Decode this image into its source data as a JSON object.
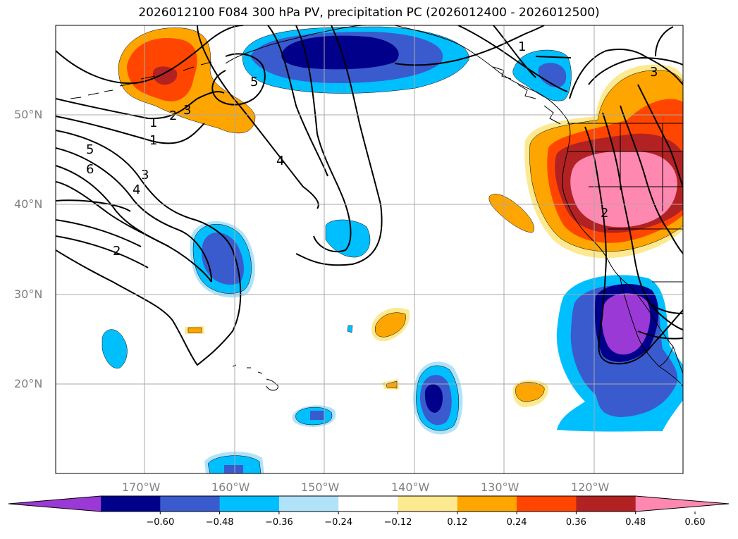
{
  "title": "2026012100 F084 300 hPa PV, precipitation PC (2026012400 - 2026012500)",
  "y_ticks": [
    "50°N",
    "40°N",
    "30°N",
    "20°N"
  ],
  "x_ticks": [
    "170°W",
    "160°W",
    "150°W",
    "140°W",
    "130°W",
    "120°W"
  ],
  "colorbar": {
    "labels": [
      "−0.60",
      "−0.48",
      "−0.36",
      "−0.24",
      "−0.12",
      "0.12",
      "0.24",
      "0.36",
      "0.48",
      "0.60"
    ],
    "colors": [
      "#9b39d6",
      "#00008b",
      "#3a5bcd",
      "#00bfff",
      "#b0e2fa",
      "#ffffff",
      "#fde990",
      "#ffa500",
      "#ff4500",
      "#b22222",
      "#ff88b0"
    ]
  },
  "contour_labels": [
    "1",
    "1",
    "2",
    "2",
    "3",
    "3",
    "4",
    "4",
    "5",
    "6",
    "1",
    "3",
    "2",
    "5"
  ],
  "palette": {
    "purple": "#9b39d6",
    "navy": "#00008b",
    "blue": "#3a5bcd",
    "sky": "#00bfff",
    "pale": "#b0e2fa",
    "yellow": "#fde990",
    "orange": "#ffa500",
    "red": "#ff4500",
    "brick": "#b22222",
    "pink": "#ff88b0"
  }
}
